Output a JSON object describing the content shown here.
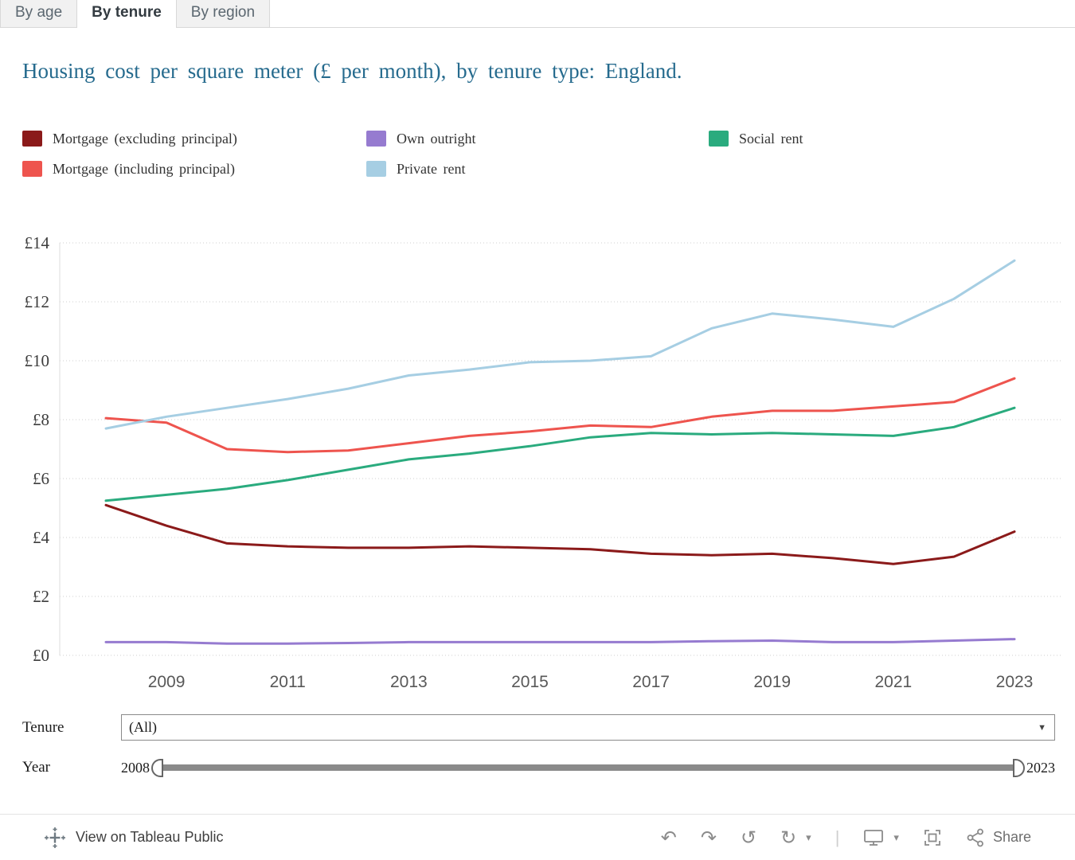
{
  "tabs": [
    {
      "label": "By age",
      "active": false
    },
    {
      "label": "By tenure",
      "active": true
    },
    {
      "label": "By region",
      "active": false
    }
  ],
  "title": "Housing cost per square meter (£ per month), by tenure type: England.",
  "colors": {
    "title": "#266b8e",
    "mortgage_excluding": "#8b1a1a",
    "mortgage_including": "#ee544e",
    "own_outright": "#967bd0",
    "private_rent": "#a6cee3",
    "social_rent": "#2aab7e"
  },
  "legend": {
    "items": [
      {
        "label": "Mortgage (excluding principal)"
      },
      {
        "label": "Mortgage (including principal)"
      },
      {
        "label": "Own outright"
      },
      {
        "label": "Private rent"
      },
      {
        "label": "Social rent"
      }
    ]
  },
  "chart_data": {
    "type": "line",
    "x": [
      2008,
      2009,
      2010,
      2011,
      2012,
      2013,
      2014,
      2015,
      2016,
      2017,
      2018,
      2019,
      2020,
      2021,
      2022,
      2023
    ],
    "series": [
      {
        "name": "Mortgage (excluding principal)",
        "color": "#8b1a1a",
        "values": [
          5.1,
          4.4,
          3.8,
          3.7,
          3.65,
          3.65,
          3.7,
          3.65,
          3.6,
          3.45,
          3.4,
          3.45,
          3.3,
          3.1,
          3.35,
          4.2
        ]
      },
      {
        "name": "Mortgage (including principal)",
        "color": "#ee544e",
        "values": [
          8.05,
          7.9,
          7.0,
          6.9,
          6.95,
          7.2,
          7.45,
          7.6,
          7.8,
          7.75,
          8.1,
          8.3,
          8.3,
          8.45,
          8.6,
          9.4
        ]
      },
      {
        "name": "Own outright",
        "color": "#967bd0",
        "values": [
          0.45,
          0.45,
          0.4,
          0.4,
          0.42,
          0.45,
          0.45,
          0.45,
          0.45,
          0.45,
          0.48,
          0.5,
          0.45,
          0.45,
          0.5,
          0.55
        ]
      },
      {
        "name": "Private rent",
        "color": "#a6cee3",
        "values": [
          7.7,
          8.1,
          8.4,
          8.7,
          9.05,
          9.5,
          9.7,
          9.95,
          10.0,
          10.15,
          11.1,
          11.6,
          11.4,
          11.15,
          12.1,
          13.4
        ]
      },
      {
        "name": "Social rent",
        "color": "#2aab7e",
        "values": [
          5.25,
          5.45,
          5.65,
          5.95,
          6.3,
          6.65,
          6.85,
          7.1,
          7.4,
          7.55,
          7.5,
          7.55,
          7.5,
          7.45,
          7.75,
          8.4
        ]
      }
    ],
    "title": "Housing cost per square meter (£ per month), by tenure type: England.",
    "xlabel": "",
    "ylabel": "",
    "ylim": [
      0,
      14
    ],
    "ytick_step": 2,
    "ytick_prefix": "£",
    "xticks": [
      2009,
      2011,
      2013,
      2015,
      2017,
      2019,
      2021,
      2023
    ],
    "grid": true,
    "legend_position": "top"
  },
  "controls": {
    "tenure_label": "Tenure",
    "tenure_value": "(All)",
    "dropdown_caret": "▼",
    "year_label": "Year",
    "year_start": "2008",
    "year_end": "2023"
  },
  "toolbar": {
    "view_label": "View on Tableau Public",
    "share_label": "Share",
    "undo_glyph": "↶",
    "redo_glyph": "↷",
    "revert_glyph": "↺",
    "refresh_glyph": "↻",
    "caret_glyph": "▾",
    "separator": "|"
  }
}
